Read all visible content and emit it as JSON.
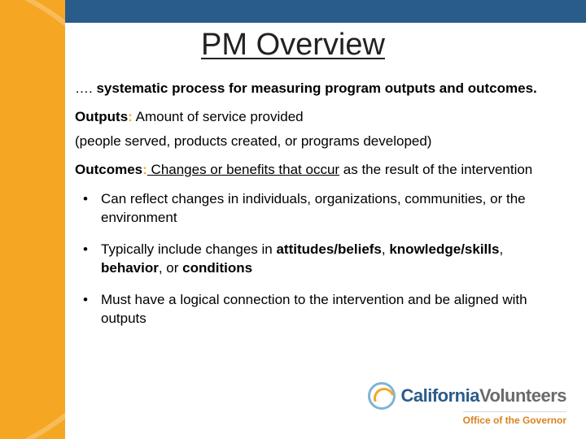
{
  "colors": {
    "top_bar": "#2a5c8a",
    "accent_orange": "#f5a623",
    "logo_blue": "#2a5c8a",
    "logo_gray": "#6a6a6a",
    "logo_sub": "#d9831f",
    "background": "#ffffff",
    "text": "#000000"
  },
  "title": "PM Overview",
  "lead": {
    "prefix": "…. ",
    "text": "systematic process for measuring program outputs and outcomes."
  },
  "outputs": {
    "label": "Outputs",
    "colon": ":",
    "text": "  Amount of service provided"
  },
  "outputs_sub": "(people served, products created, or programs developed)",
  "outcomes": {
    "label": "Outcomes",
    "colon": ":",
    "underlined": "  Changes or benefits that occur",
    "rest": " as the result of the intervention"
  },
  "bullets": {
    "b1": "Can reflect changes in individuals, organizations, communities, or the environment",
    "b2": {
      "t1": "Typically include changes in ",
      "k1": "attitudes/beliefs",
      "t2": ", ",
      "k2": "knowledge/skills",
      "t3": ", ",
      "k3": "behavior",
      "t4": ", or ",
      "k4": "conditions"
    },
    "b3": "Must have a logical connection to the intervention and be aligned with outputs"
  },
  "logo": {
    "line1a": "California",
    "line1b": "Volunteers",
    "sub": "Office of the Governor"
  }
}
